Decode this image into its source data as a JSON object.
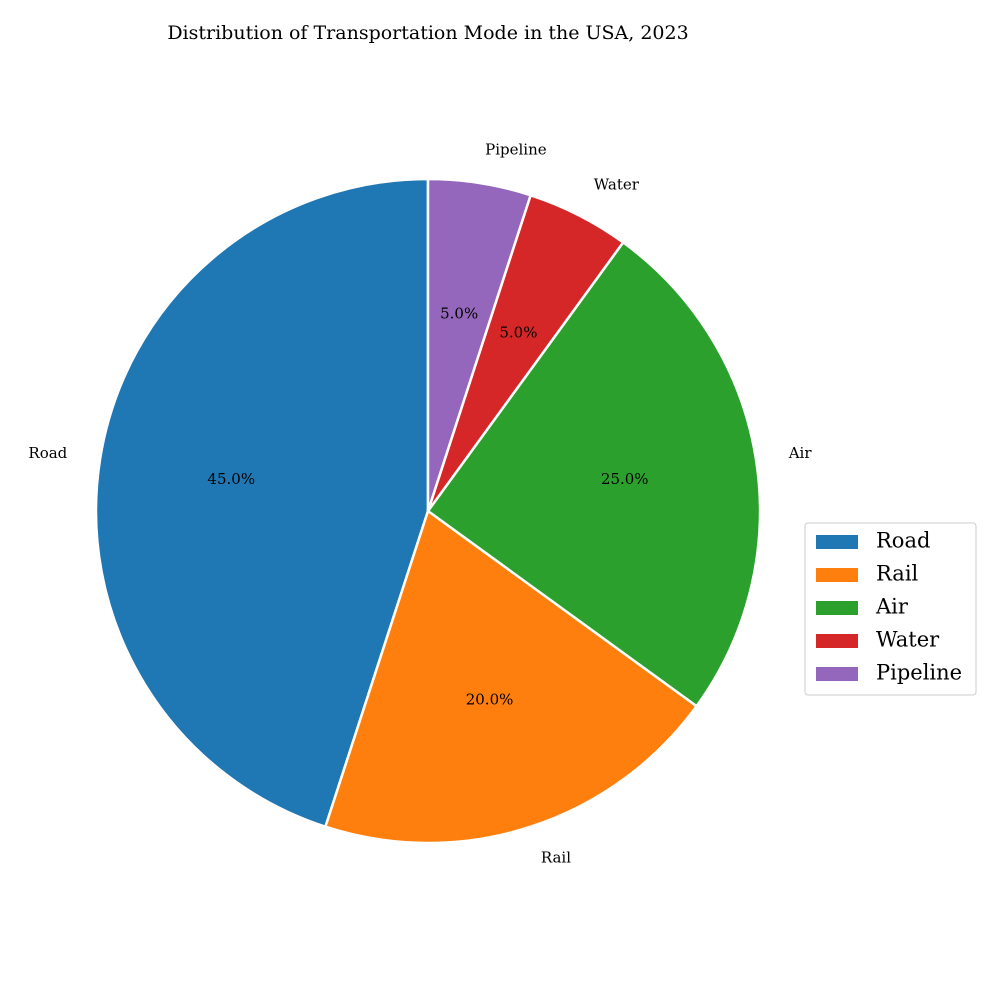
{
  "chart_data": {
    "type": "pie",
    "title": "Distribution of Transportation Mode in the USA, 2023",
    "categories": [
      "Road",
      "Rail",
      "Air",
      "Water",
      "Pipeline"
    ],
    "values": [
      45.0,
      20.0,
      25.0,
      5.0,
      5.0
    ],
    "value_labels": [
      "45.0%",
      "20.0%",
      "25.0%",
      "5.0%",
      "5.0%"
    ],
    "colors": [
      "#1f77b4",
      "#ff7f0e",
      "#2ca02c",
      "#d62728",
      "#9467bd"
    ],
    "start_angle_deg": 90,
    "direction": "counterclockwise",
    "legend": {
      "entries": [
        "Road",
        "Rail",
        "Air",
        "Water",
        "Pipeline"
      ],
      "placement": "center-right"
    }
  }
}
